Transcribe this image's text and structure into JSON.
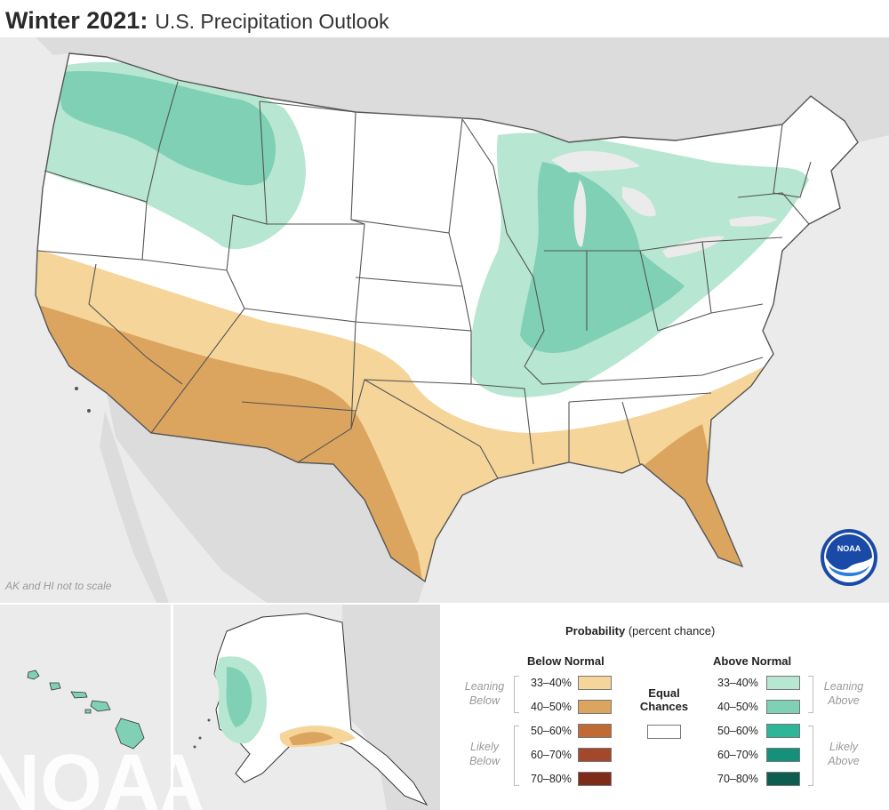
{
  "title": {
    "main": "Winter 2021:",
    "sub": "U.S. Precipitation Outlook"
  },
  "scale_note": "AK and HI not to scale",
  "logo": {
    "text": "NOAA",
    "icon": "noaa-logo-icon"
  },
  "watermark": "NOAA",
  "legend": {
    "title": "Probability",
    "title_suffix": "(percent chance)",
    "below_heading": "Below Normal",
    "above_heading": "Above Normal",
    "equal_line1": "Equal",
    "equal_line2": "Chances",
    "leaning_below_1": "Leaning",
    "leaning_below_2": "Below",
    "likely_below_1": "Likely",
    "likely_below_2": "Below",
    "leaning_above_1": "Leaning",
    "leaning_above_2": "Above",
    "likely_above_1": "Likely",
    "likely_above_2": "Above",
    "below": [
      {
        "label": "33–40%",
        "color": "#f5d59a"
      },
      {
        "label": "40–50%",
        "color": "#dca55f"
      },
      {
        "label": "50–60%",
        "color": "#c06a35"
      },
      {
        "label": "60–70%",
        "color": "#a3482a"
      },
      {
        "label": "70–80%",
        "color": "#7e2b1a"
      }
    ],
    "above": [
      {
        "label": "33–40%",
        "color": "#b7e6d2"
      },
      {
        "label": "40–50%",
        "color": "#7fd0b5"
      },
      {
        "label": "50–60%",
        "color": "#2db698"
      },
      {
        "label": "60–70%",
        "color": "#14917a"
      },
      {
        "label": "70–80%",
        "color": "#0d5e50"
      }
    ],
    "equal_color": "#ffffff"
  },
  "colors": {
    "land_outside": "#dcdcdc",
    "ocean": "#ebebeb",
    "conus_base": "#ffffff",
    "border_line": "#555555"
  }
}
